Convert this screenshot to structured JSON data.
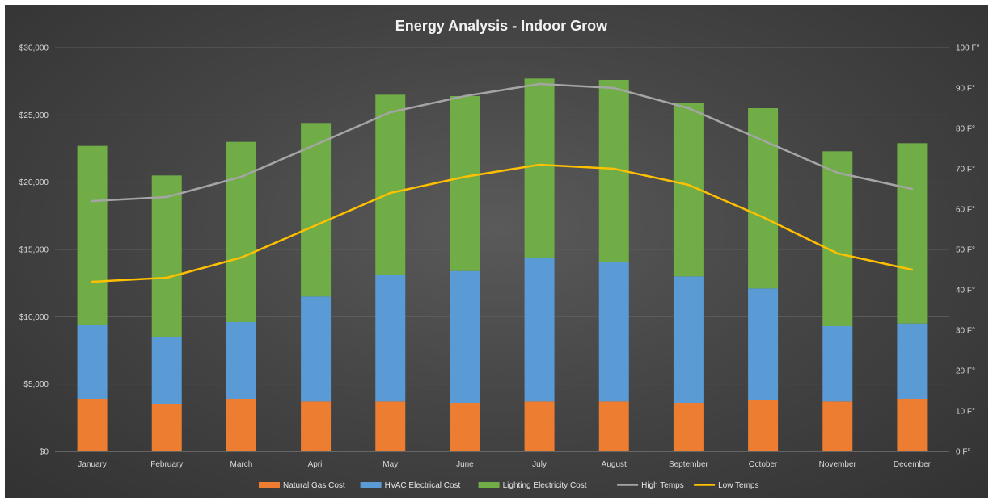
{
  "chart_data": {
    "type": "bar",
    "title": "Energy Analysis - Indoor Grow",
    "categories": [
      "January",
      "February",
      "March",
      "April",
      "May",
      "June",
      "July",
      "August",
      "September",
      "October",
      "November",
      "December"
    ],
    "stacked": true,
    "series": [
      {
        "name": "Natural Gas Cost",
        "kind": "bar",
        "color": "#ed7d31",
        "axis": "left",
        "values": [
          3900,
          3500,
          3900,
          3700,
          3700,
          3600,
          3700,
          3700,
          3600,
          3800,
          3700,
          3900
        ]
      },
      {
        "name": "HVAC Electrical Cost",
        "kind": "bar",
        "color": "#5b9bd5",
        "axis": "left",
        "values": [
          5500,
          5000,
          5700,
          7800,
          9400,
          9800,
          10700,
          10400,
          9400,
          8300,
          5600,
          5600
        ]
      },
      {
        "name": "Lighting Electricity Cost",
        "kind": "bar",
        "color": "#70ad47",
        "axis": "left",
        "values": [
          13300,
          12000,
          13400,
          12900,
          13400,
          13000,
          13300,
          13500,
          12900,
          13400,
          13000,
          13400
        ]
      },
      {
        "name": "High Temps",
        "kind": "line",
        "color": "#a5a5a5",
        "axis": "right",
        "values": [
          62,
          63,
          68,
          76,
          84,
          88,
          91,
          90,
          85,
          77,
          69,
          65
        ]
      },
      {
        "name": "Low Temps",
        "kind": "line",
        "color": "#ffc000",
        "axis": "right",
        "values": [
          42,
          43,
          48,
          56,
          64,
          68,
          71,
          70,
          66,
          58,
          49,
          45
        ]
      }
    ],
    "y_left": {
      "min": 0,
      "max": 30000,
      "ticks": [
        0,
        5000,
        10000,
        15000,
        20000,
        25000,
        30000
      ],
      "tick_labels": [
        "$0",
        "$5,000",
        "$10,000",
        "$15,000",
        "$20,000",
        "$25,000",
        "$30,000"
      ]
    },
    "y_right": {
      "min": 0,
      "max": 100,
      "ticks": [
        0,
        10,
        20,
        30,
        40,
        50,
        60,
        70,
        80,
        90,
        100
      ],
      "tick_labels": [
        "0 F°",
        "10 F°",
        "20 F°",
        "30 F°",
        "40 F°",
        "50 F°",
        "60 F°",
        "70 F°",
        "80 F°",
        "90 F°",
        "100 F°"
      ]
    },
    "grid": true,
    "legend_position": "bottom"
  }
}
